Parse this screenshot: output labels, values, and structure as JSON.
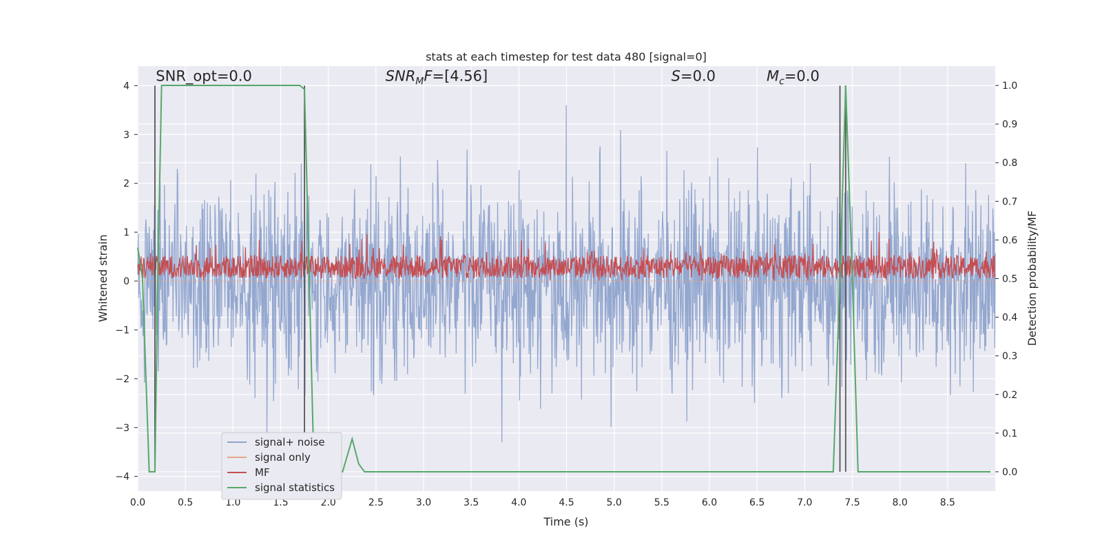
{
  "chart_data": {
    "type": "line",
    "title": "stats at each timestep for test data 480 [signal=0]",
    "xlabel": "Time (s)",
    "ylabel": "Whitened strain",
    "y2label": "Detection probability/MF",
    "xlim": [
      0.0,
      9.0
    ],
    "ylim": [
      -4.3,
      4.4
    ],
    "y2lim": [
      -0.05,
      1.05
    ],
    "x_ticks": [
      "0.0",
      "0.5",
      "1.0",
      "1.5",
      "2.0",
      "2.5",
      "3.0",
      "3.5",
      "4.0",
      "4.5",
      "5.0",
      "5.5",
      "6.0",
      "6.5",
      "7.0",
      "7.5",
      "8.0",
      "8.5"
    ],
    "y_ticks": [
      "4",
      "3",
      "2",
      "1",
      "0",
      "−1",
      "−2",
      "−3",
      "−4"
    ],
    "y2_ticks": [
      "1.0",
      "0.9",
      "0.8",
      "0.7",
      "0.6",
      "0.5",
      "0.4",
      "0.3",
      "0.2",
      "0.1",
      "0.0"
    ],
    "grid": true,
    "legend_placement": "lower-left",
    "annotations": [
      {
        "id": "snr-opt",
        "text": "SNR_opt=0.0",
        "x": 0.19,
        "y": 4.1
      },
      {
        "id": "snr-mf",
        "prefix": "SNR",
        "sub": "M",
        "suffix": "F=[4.56]",
        "x": 2.6,
        "y": 4.1
      },
      {
        "id": "s",
        "prefix": "S",
        "sub": "",
        "suffix": "=0.0",
        "x": 5.6,
        "y": 4.1
      },
      {
        "id": "mc",
        "prefix": "M",
        "sub": "c",
        "suffix": "=0.0",
        "x": 6.6,
        "y": 4.1
      }
    ],
    "vlines": [
      0.18,
      1.75,
      7.37,
      7.43
    ],
    "series": [
      {
        "name": "signal+ noise",
        "color": "#8ea3cc",
        "axis": "left",
        "noise_range": [
          -3.3,
          3.6
        ],
        "n_samples": 1800
      },
      {
        "name": "signal only",
        "color": "#e8a58a",
        "axis": "left",
        "values": "zero"
      },
      {
        "name": "MF",
        "color": "#c44e52",
        "axis": "right",
        "band": [
          0.5,
          0.6
        ]
      },
      {
        "name": "signal statistics",
        "color": "#55a868",
        "axis": "right",
        "x": [
          0.0,
          0.05,
          0.12,
          0.18,
          0.21,
          0.25,
          0.3,
          1.7,
          1.75,
          1.8,
          1.85,
          2.15,
          2.25,
          2.32,
          2.38,
          7.3,
          7.37,
          7.43,
          7.5,
          7.56,
          8.95
        ],
        "y": [
          0.58,
          0.5,
          0.0,
          0.0,
          0.5,
          1.0,
          1.0,
          1.0,
          0.99,
          0.5,
          0.0,
          0.0,
          0.085,
          0.02,
          0.0,
          0.0,
          0.5,
          1.0,
          0.5,
          0.0,
          0.0
        ]
      }
    ]
  }
}
